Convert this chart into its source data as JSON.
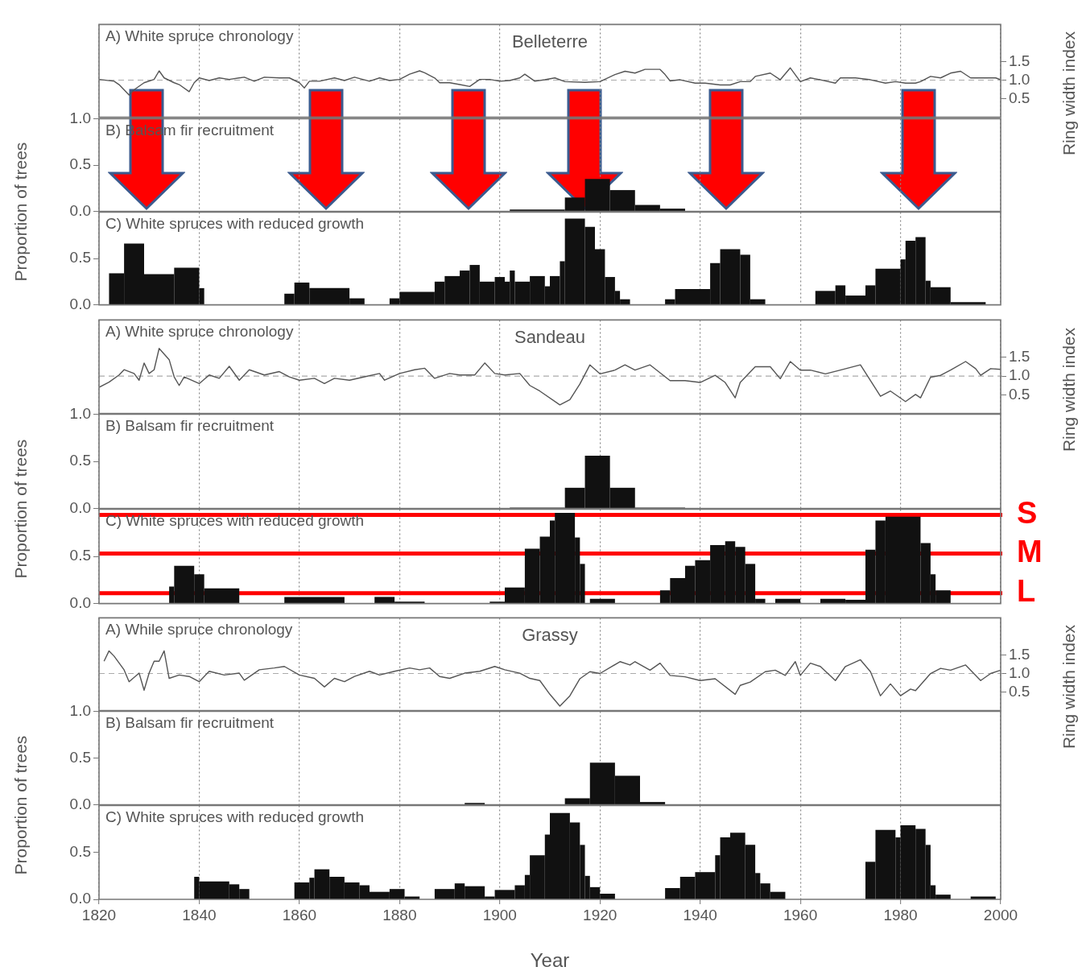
{
  "chart_data": [
    {
      "type": "line",
      "title": "A) White spruce chronology",
      "subtitle": "Belleterre",
      "y2label": "Ring width index",
      "series": [
        {
          "color": "#555555",
          "axis": "y2",
          "x": [
            1820,
            1823,
            1824,
            1826,
            1827,
            1829,
            1831,
            1832,
            1833,
            1835,
            1836,
            1838,
            1839,
            1840,
            1842,
            1844,
            1846,
            1848,
            1849,
            1851,
            1853,
            1856,
            1858,
            1860,
            1861,
            1862,
            1864,
            1867,
            1869,
            1871,
            1874,
            1876,
            1878,
            1880,
            1882,
            1884,
            1885,
            1887,
            1888,
            1890,
            1892,
            1894,
            1896,
            1898,
            1900,
            1902,
            1904,
            1905,
            1907,
            1909,
            1911,
            1913,
            1917,
            1920,
            1923,
            1925,
            1927,
            1929,
            1932,
            1933,
            1934,
            1936,
            1939,
            1941,
            1944,
            1946,
            1948,
            1950,
            1951,
            1954,
            1956,
            1958,
            1960,
            1962,
            1964,
            1967,
            1968,
            1971,
            1974,
            1977,
            1979,
            1981,
            1983,
            1984,
            1986,
            1988,
            1990,
            1992,
            1994,
            1996,
            1999,
            2000
          ],
          "values": [
            1.02,
            0.97,
            0.88,
            0.6,
            0.74,
            0.93,
            1.02,
            1.25,
            1.06,
            0.93,
            0.88,
            0.69,
            0.93,
            1.06,
            0.99,
            1.06,
            1.02,
            1.06,
            1.08,
            0.97,
            1.08,
            1.06,
            1.06,
            0.93,
            0.79,
            0.97,
            0.97,
            1.06,
            0.99,
            1.08,
            0.97,
            1.06,
            0.99,
            1.02,
            1.16,
            1.25,
            1.2,
            1.06,
            0.93,
            0.93,
            0.88,
            0.83,
            1.02,
            1.02,
            0.97,
            0.99,
            1.06,
            1.16,
            0.97,
            1.01,
            1.06,
            0.96,
            0.94,
            0.96,
            1.15,
            1.24,
            1.19,
            1.29,
            1.29,
            1.15,
            0.98,
            1.01,
            0.92,
            0.92,
            0.87,
            0.87,
            0.96,
            0.96,
            1.1,
            1.19,
            1.01,
            1.33,
            0.96,
            1.06,
            1.01,
            0.92,
            1.06,
            1.06,
            1.01,
            0.92,
            0.96,
            0.92,
            0.92,
            0.96,
            1.1,
            1.06,
            1.19,
            1.24,
            1.06,
            1.06,
            1.06,
            1.01
          ]
        }
      ],
      "xlim": [
        1820,
        2000
      ],
      "xticks": [
        1820,
        1840,
        1860,
        1880,
        1900,
        1920,
        1940,
        1960,
        1980,
        2000
      ],
      "y2lim": [
        0,
        2.5
      ],
      "y2ticks": [
        {
          "value": 0.5,
          "label": "0.5"
        },
        {
          "value": 1,
          "label": "1.0"
        },
        {
          "value": 1.5,
          "label": "1.5"
        }
      ],
      "ref_lines": [
        {
          "axis": "y2",
          "value": 1,
          "color": "#aaaaaa",
          "line_style": "dashed"
        }
      ],
      "grid": "x",
      "tick_labels": "y"
    },
    {
      "type": "histogram",
      "title": "B) Balsam fir recruitment",
      "ylabel": "Proportion of trees",
      "color": "#111111",
      "bins": [
        1902,
        1913,
        1917,
        1922,
        1927,
        1932,
        1937
      ],
      "values": [
        0.02,
        0.15,
        0.35,
        0.23,
        0.07,
        0.03
      ],
      "xlim": [
        1820,
        2000
      ],
      "xticks": [
        1820,
        1840,
        1860,
        1880,
        1900,
        1920,
        1940,
        1960,
        1980,
        2000
      ],
      "ylim": [
        0,
        1
      ],
      "yticks": [
        {
          "value": 0,
          "label": "0.0"
        },
        {
          "value": 0.5,
          "label": "0.5"
        },
        {
          "value": 1,
          "label": "1.0"
        }
      ],
      "grid": "x",
      "tick_labels": "y"
    },
    {
      "type": "histogram",
      "title": "C) White spruces with reduced growth",
      "color": "#111111",
      "bins": [
        1822,
        1825,
        1829,
        1835,
        1840,
        1841,
        1857,
        1859,
        1862,
        1870,
        1873,
        1878,
        1880,
        1887,
        1889,
        1892,
        1894,
        1896,
        1899,
        1901,
        1902,
        1903,
        1906,
        1909,
        1910,
        1912,
        1913,
        1917,
        1919,
        1921,
        1923,
        1924,
        1926,
        1933,
        1935,
        1942,
        1944,
        1948,
        1950,
        1953,
        1963,
        1967,
        1969,
        1973,
        1975,
        1980,
        1981,
        1983,
        1985,
        1986,
        1990,
        1997
      ],
      "values": [
        0.34,
        0.66,
        0.33,
        0.4,
        0.18,
        0,
        0.12,
        0.24,
        0.18,
        0.07,
        0,
        0.07,
        0.14,
        0.25,
        0.31,
        0.37,
        0.43,
        0.25,
        0.3,
        0.25,
        0.37,
        0.25,
        0.31,
        0.2,
        0.31,
        0.47,
        0.93,
        0.84,
        0.6,
        0.3,
        0.15,
        0.06,
        0,
        0.06,
        0.17,
        0.45,
        0.6,
        0.54,
        0.06,
        0,
        0.15,
        0.21,
        0.1,
        0.21,
        0.39,
        0.49,
        0.69,
        0.73,
        0.26,
        0.19,
        0.03
      ],
      "xlim": [
        1820,
        2000
      ],
      "xticks": [
        1820,
        1840,
        1860,
        1880,
        1900,
        1920,
        1940,
        1960,
        1980,
        2000
      ],
      "ylim": [
        0,
        1
      ],
      "yticks": [
        {
          "value": 0,
          "label": "0.0"
        },
        {
          "value": 0.5,
          "label": "0.5"
        }
      ],
      "grid": "x",
      "tick_labels": "y"
    },
    {
      "type": "line",
      "title": "A) White spruce chronology",
      "subtitle": "Sandeau",
      "y2label": "Ring width index",
      "series": [
        {
          "color": "#555555",
          "axis": "y2",
          "x": [
            1820,
            1822,
            1824,
            1825,
            1827,
            1828,
            1829,
            1830,
            1831,
            1832,
            1834,
            1835,
            1836,
            1837,
            1840,
            1842,
            1844,
            1846,
            1848,
            1850,
            1853,
            1856,
            1858,
            1860,
            1863,
            1865,
            1867,
            1870,
            1873,
            1876,
            1877,
            1880,
            1883,
            1885,
            1887,
            1890,
            1892,
            1895,
            1897,
            1899,
            1901,
            1904,
            1906,
            1908,
            1912,
            1914,
            1916,
            1918,
            1920,
            1923,
            1925,
            1927,
            1930,
            1934,
            1937,
            1940,
            1943,
            1945,
            1947,
            1948,
            1951,
            1954,
            1956,
            1958,
            1960,
            1962,
            1965,
            1968,
            1972,
            1974,
            1976,
            1978,
            1981,
            1983,
            1984,
            1986,
            1988,
            1990,
            1993,
            1995,
            1996,
            1998,
            2000
          ],
          "values": [
            0.7,
            0.84,
            1.03,
            1.17,
            1.07,
            0.89,
            1.35,
            1.07,
            1.17,
            1.74,
            1.44,
            0.98,
            0.75,
            0.98,
            0.8,
            1.03,
            0.94,
            1.26,
            0.89,
            1.17,
            1.03,
            1.12,
            0.98,
            0.89,
            0.94,
            0.8,
            0.94,
            0.89,
            0.98,
            1.07,
            0.89,
            1.07,
            1.17,
            1.21,
            0.94,
            1.07,
            1.03,
            1.03,
            1.35,
            1.07,
            1.03,
            1.07,
            0.75,
            0.6,
            0.23,
            0.37,
            0.79,
            1.3,
            1.06,
            1.16,
            1.3,
            1.16,
            1.3,
            0.88,
            0.88,
            0.83,
            1.02,
            0.83,
            0.42,
            0.83,
            1.25,
            1.25,
            0.93,
            1.39,
            1.16,
            1.16,
            1.06,
            1.16,
            1.3,
            0.88,
            0.46,
            0.6,
            0.32,
            0.51,
            0.42,
            0.97,
            1.02,
            1.16,
            1.39,
            1.2,
            1.02,
            1.2,
            1.18
          ]
        }
      ],
      "xlim": [
        1820,
        2000
      ],
      "xticks": [
        1820,
        1840,
        1860,
        1880,
        1900,
        1920,
        1940,
        1960,
        1980,
        2000
      ],
      "y2lim": [
        0,
        2.5
      ],
      "y2ticks": [
        {
          "value": 0.5,
          "label": "0.5"
        },
        {
          "value": 1,
          "label": "1.0"
        },
        {
          "value": 1.5,
          "label": "1.5"
        }
      ],
      "ref_lines": [
        {
          "axis": "y2",
          "value": 1,
          "color": "#aaaaaa",
          "line_style": "dashed"
        }
      ],
      "grid": "x",
      "tick_labels": "y"
    },
    {
      "type": "histogram",
      "title": "B) Balsam fir recruitment",
      "ylabel": "Proportion of trees",
      "color": "#111111",
      "bins": [
        1902,
        1913,
        1917,
        1922,
        1927,
        1937
      ],
      "values": [
        0.01,
        0.22,
        0.56,
        0.22,
        0.01
      ],
      "xlim": [
        1820,
        2000
      ],
      "xticks": [
        1820,
        1840,
        1860,
        1880,
        1900,
        1920,
        1940,
        1960,
        1980,
        2000
      ],
      "ylim": [
        0,
        1
      ],
      "yticks": [
        {
          "value": 0,
          "label": "0.0"
        },
        {
          "value": 0.5,
          "label": "0.5"
        },
        {
          "value": 1,
          "label": "1.0"
        }
      ],
      "grid": "x",
      "tick_labels": "y"
    },
    {
      "type": "histogram",
      "title": "C) White spruces with reduced growth",
      "color": "#111111",
      "bins": [
        1834,
        1835,
        1839,
        1841,
        1848,
        1857,
        1869,
        1875,
        1879,
        1885,
        1898,
        1901,
        1905,
        1908,
        1910,
        1911,
        1915,
        1916,
        1917,
        1918,
        1923,
        1932,
        1934,
        1937,
        1939,
        1942,
        1945,
        1947,
        1949,
        1951,
        1953,
        1955,
        1960,
        1964,
        1969,
        1973,
        1975,
        1977,
        1984,
        1986,
        1987,
        1990
      ],
      "values": [
        0.18,
        0.4,
        0.31,
        0.16,
        0,
        0.07,
        0,
        0.07,
        0.02,
        0,
        0.02,
        0.17,
        0.58,
        0.71,
        0.88,
        0.96,
        0.7,
        0.42,
        0,
        0.05,
        0,
        0.14,
        0.27,
        0.4,
        0.46,
        0.62,
        0.66,
        0.6,
        0.42,
        0.05,
        0,
        0.05,
        0,
        0.05,
        0.04,
        0.57,
        0.88,
        0.92,
        0.64,
        0.31,
        0.14
      ],
      "xlim": [
        1820,
        2000
      ],
      "xticks": [
        1820,
        1840,
        1860,
        1880,
        1900,
        1920,
        1940,
        1960,
        1980,
        2000
      ],
      "ylim": [
        0,
        1
      ],
      "yticks": [
        {
          "value": 0,
          "label": "0.0"
        },
        {
          "value": 0.5,
          "label": "0.5"
        }
      ],
      "grid": "x",
      "tick_labels": "y",
      "ref_lines": [
        {
          "axis": "y",
          "value": 0.94,
          "label": "S",
          "color": "#ff0000"
        },
        {
          "axis": "y",
          "value": 0.53,
          "label": "M",
          "color": "#ff0000"
        },
        {
          "axis": "y",
          "value": 0.11,
          "label": "L",
          "color": "#ff0000"
        }
      ]
    },
    {
      "type": "line",
      "title": "A) While spruce chronology",
      "subtitle": "Grassy",
      "y2label": "Ring width index",
      "series": [
        {
          "color": "#555555",
          "axis": "y2",
          "x": [
            1821,
            1822,
            1823,
            1825,
            1826,
            1828,
            1829,
            1830,
            1831,
            1832,
            1833,
            1834,
            1836,
            1838,
            1840,
            1842,
            1845,
            1848,
            1849,
            1852,
            1855,
            1857,
            1860,
            1863,
            1865,
            1867,
            1869,
            1871,
            1874,
            1876,
            1879,
            1882,
            1884,
            1886,
            1888,
            1890,
            1893,
            1896,
            1899,
            1901,
            1904,
            1906,
            1908,
            1910,
            1912,
            1914,
            1916,
            1918,
            1920,
            1924,
            1926,
            1927,
            1930,
            1932,
            1934,
            1937,
            1940,
            1943,
            1947,
            1948,
            1950,
            1953,
            1955,
            1957,
            1959,
            1960,
            1962,
            1964,
            1967,
            1969,
            1972,
            1974,
            1976,
            1978,
            1980,
            1982,
            1983,
            1986,
            1988,
            1990,
            1993,
            1996,
            1998,
            2000
          ],
          "values": [
            1.33,
            1.61,
            1.47,
            1.1,
            0.78,
            1.01,
            0.55,
            1.01,
            1.33,
            1.33,
            1.61,
            0.87,
            0.96,
            0.92,
            0.78,
            1.06,
            0.96,
            1.01,
            0.82,
            1.1,
            1.15,
            1.19,
            0.96,
            0.87,
            0.64,
            0.87,
            0.78,
            0.92,
            1.06,
            0.96,
            1.06,
            1.15,
            1.1,
            1.15,
            0.92,
            0.87,
            1.01,
            1.06,
            1.19,
            1.1,
            1.01,
            0.87,
            0.81,
            0.44,
            0.12,
            0.4,
            0.86,
            1.05,
            1,
            1.32,
            1.23,
            1.32,
            1.09,
            1.28,
            0.95,
            0.91,
            0.81,
            0.86,
            0.44,
            0.68,
            0.77,
            1.05,
            1.09,
            0.95,
            1.32,
            0.95,
            1.28,
            1.19,
            0.81,
            1.19,
            1.37,
            1.05,
            0.4,
            0.72,
            0.4,
            0.58,
            0.54,
            1,
            1.14,
            1.09,
            1.23,
            0.81,
            1,
            1.09
          ]
        }
      ],
      "xlim": [
        1820,
        2000
      ],
      "xticks": [
        1820,
        1840,
        1860,
        1880,
        1900,
        1920,
        1940,
        1960,
        1980,
        2000
      ],
      "y2lim": [
        0,
        2.5
      ],
      "y2ticks": [
        {
          "value": 0.5,
          "label": "0.5"
        },
        {
          "value": 1,
          "label": "1.0"
        },
        {
          "value": 1.5,
          "label": "1.5"
        }
      ],
      "ref_lines": [
        {
          "axis": "y2",
          "value": 1,
          "color": "#aaaaaa",
          "line_style": "dashed"
        }
      ],
      "grid": "x",
      "tick_labels": "y"
    },
    {
      "type": "histogram",
      "title": "B) Balsam fir recruitment",
      "ylabel": "Proportion of trees",
      "color": "#111111",
      "bins": [
        1893,
        1897,
        1913,
        1918,
        1923,
        1928,
        1933
      ],
      "values": [
        0.02,
        0,
        0.07,
        0.45,
        0.31,
        0.03
      ],
      "xlim": [
        1820,
        2000
      ],
      "xticks": [
        1820,
        1840,
        1860,
        1880,
        1900,
        1920,
        1940,
        1960,
        1980,
        2000
      ],
      "ylim": [
        0,
        1
      ],
      "yticks": [
        {
          "value": 0,
          "label": "0.0"
        },
        {
          "value": 0.5,
          "label": "0.5"
        },
        {
          "value": 1,
          "label": "1.0"
        }
      ],
      "grid": "x",
      "tick_labels": "y"
    },
    {
      "type": "histogram",
      "title": "C) White spruces with reduced growth",
      "xlabel": "Year",
      "color": "#111111",
      "bins": [
        1839,
        1840,
        1846,
        1848,
        1850,
        1859,
        1862,
        1863,
        1866,
        1869,
        1872,
        1874,
        1878,
        1881,
        1884,
        1887,
        1891,
        1893,
        1897,
        1899,
        1903,
        1905,
        1906,
        1909,
        1910,
        1914,
        1916,
        1917,
        1918,
        1920,
        1923,
        1933,
        1936,
        1939,
        1943,
        1944,
        1946,
        1949,
        1951,
        1952,
        1954,
        1957,
        1973,
        1975,
        1979,
        1980,
        1983,
        1985,
        1986,
        1987,
        1990,
        1994,
        1999
      ],
      "values": [
        0.24,
        0.19,
        0.16,
        0.11,
        0,
        0.18,
        0.23,
        0.32,
        0.24,
        0.18,
        0.15,
        0.08,
        0.11,
        0.03,
        0,
        0.11,
        0.17,
        0.14,
        0.03,
        0.1,
        0.15,
        0.26,
        0.47,
        0.69,
        0.92,
        0.82,
        0.58,
        0.25,
        0.13,
        0.06,
        0,
        0.12,
        0.24,
        0.29,
        0.47,
        0.66,
        0.71,
        0.58,
        0.28,
        0.17,
        0.08,
        0,
        0.4,
        0.74,
        0.66,
        0.79,
        0.75,
        0.58,
        0.15,
        0.05,
        0,
        0.03
      ],
      "xlim": [
        1820,
        2000
      ],
      "xticks": [
        1820,
        1840,
        1860,
        1880,
        1900,
        1920,
        1940,
        1960,
        1980,
        2000
      ],
      "ylim": [
        0,
        1
      ],
      "yticks": [
        {
          "value": 0,
          "label": "0.0"
        },
        {
          "value": 0.5,
          "label": "0.5"
        }
      ],
      "grid": "x"
    }
  ]
}
